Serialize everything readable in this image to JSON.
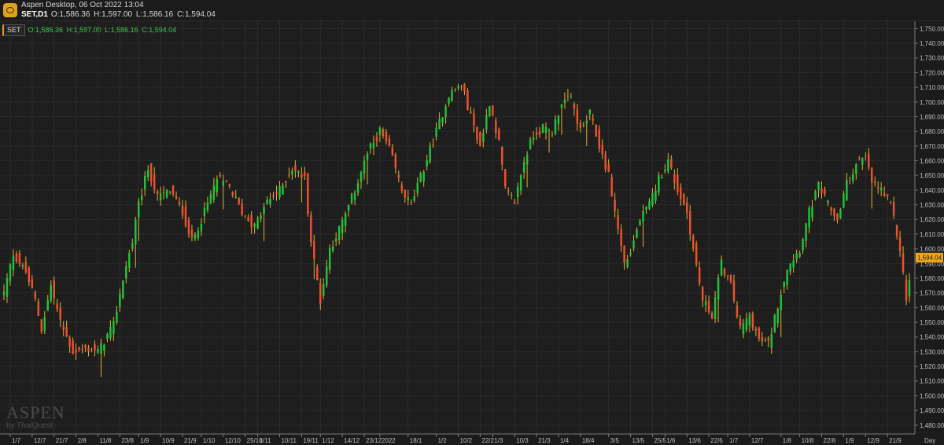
{
  "window": {
    "app_title": "Aspen Desktop, 06 Oct 2022 13:04",
    "symbol_timeframe": "SET,D1",
    "ohlc": {
      "o": "O:1,586.36",
      "h": "H:1,597.00",
      "l": "L:1,586.16",
      "c": "C:1,594.04"
    }
  },
  "legend": {
    "tag": "SET"
  },
  "watermark": {
    "brand": "ASPEN",
    "sub": "by ThaiQuest"
  },
  "timeframe_label": "Day",
  "colors": {
    "background": "#1e1e1e",
    "up": "#1fc33a",
    "down": "#f0502c",
    "wick": "#e0b030",
    "grid": "#2b2b2b",
    "axis_text": "#bdbdbd",
    "price_tag": "#f0a818"
  },
  "chart_data": {
    "type": "candlestick",
    "last_price_label": "1,594.04",
    "last_price": 1594.04,
    "ylim": [
      1474,
      1755
    ],
    "y_ticks": [
      1750,
      1740,
      1730,
      1720,
      1710,
      1700,
      1690,
      1680,
      1670,
      1660,
      1650,
      1640,
      1630,
      1620,
      1610,
      1600,
      1590,
      1580,
      1570,
      1560,
      1550,
      1540,
      1530,
      1520,
      1510,
      1500,
      1490,
      1480
    ],
    "y_tick_labels": [
      "1,750.00",
      "1,740.00",
      "1,730.00",
      "1,720.00",
      "1,710.00",
      "1,700.00",
      "1,690.00",
      "1,680.00",
      "1,670.00",
      "1,660.00",
      "1,650.00",
      "1,640.00",
      "1,630.00",
      "1,620.00",
      "1,610.00",
      "1,600.00",
      "1,590.00",
      "1,580.00",
      "1,570.00",
      "1,560.00",
      "1,550.00",
      "1,540.00",
      "1,530.00",
      "1,520.00",
      "1,510.00",
      "1,500.00",
      "1,490.00",
      "1,480.00"
    ],
    "x_ticks": [
      {
        "label": "1/7",
        "i": 2
      },
      {
        "label": "12/7",
        "i": 9
      },
      {
        "label": "21/7",
        "i": 16
      },
      {
        "label": "2/8",
        "i": 23
      },
      {
        "label": "11/8",
        "i": 30
      },
      {
        "label": "23/8",
        "i": 37
      },
      {
        "label": "1/9",
        "i": 43
      },
      {
        "label": "10/9",
        "i": 50
      },
      {
        "label": "21/9",
        "i": 57
      },
      {
        "label": "1/10",
        "i": 63
      },
      {
        "label": "12/10",
        "i": 70
      },
      {
        "label": "25/10",
        "i": 77
      },
      {
        "label": "1/11",
        "i": 81
      },
      {
        "label": "10/11",
        "i": 88
      },
      {
        "label": "19/11",
        "i": 95
      },
      {
        "label": "1/12",
        "i": 101
      },
      {
        "label": "14/12",
        "i": 108
      },
      {
        "label": "23/12",
        "i": 115
      },
      {
        "label": "2022",
        "i": 120
      },
      {
        "label": "18/1",
        "i": 129
      },
      {
        "label": "1/2",
        "i": 138
      },
      {
        "label": "10/2",
        "i": 145
      },
      {
        "label": "22/2",
        "i": 152
      },
      {
        "label": "1/3",
        "i": 156
      },
      {
        "label": "10/3",
        "i": 163
      },
      {
        "label": "21/3",
        "i": 170
      },
      {
        "label": "1/4",
        "i": 177
      },
      {
        "label": "18/4",
        "i": 184
      },
      {
        "label": "3/5",
        "i": 193
      },
      {
        "label": "13/5",
        "i": 200
      },
      {
        "label": "25/5",
        "i": 207
      },
      {
        "label": "1/6",
        "i": 211
      },
      {
        "label": "13/6",
        "i": 218
      },
      {
        "label": "22/6",
        "i": 225
      },
      {
        "label": "1/7",
        "i": 231
      },
      {
        "label": "12/7",
        "i": 238
      },
      {
        "label": "1/8",
        "i": 248
      },
      {
        "label": "10/8",
        "i": 254
      },
      {
        "label": "22/8",
        "i": 261
      },
      {
        "label": "1/9",
        "i": 268
      },
      {
        "label": "12/9",
        "i": 275
      },
      {
        "label": "21/9",
        "i": 282
      }
    ],
    "n_bars": 290,
    "anchors": [
      [
        0,
        1570
      ],
      [
        3,
        1597
      ],
      [
        7,
        1584
      ],
      [
        10,
        1565
      ],
      [
        12,
        1545
      ],
      [
        15,
        1575
      ],
      [
        18,
        1550
      ],
      [
        22,
        1530
      ],
      [
        27,
        1532
      ],
      [
        30,
        1530
      ],
      [
        35,
        1548
      ],
      [
        38,
        1580
      ],
      [
        41,
        1605
      ],
      [
        43,
        1630
      ],
      [
        46,
        1655
      ],
      [
        49,
        1635
      ],
      [
        53,
        1640
      ],
      [
        57,
        1625
      ],
      [
        60,
        1605
      ],
      [
        64,
        1625
      ],
      [
        68,
        1648
      ],
      [
        72,
        1642
      ],
      [
        76,
        1625
      ],
      [
        80,
        1615
      ],
      [
        84,
        1632
      ],
      [
        88,
        1640
      ],
      [
        92,
        1655
      ],
      [
        96,
        1648
      ],
      [
        98,
        1605
      ],
      [
        101,
        1565
      ],
      [
        104,
        1600
      ],
      [
        108,
        1618
      ],
      [
        112,
        1640
      ],
      [
        116,
        1665
      ],
      [
        120,
        1680
      ],
      [
        123,
        1668
      ],
      [
        127,
        1640
      ],
      [
        130,
        1630
      ],
      [
        134,
        1655
      ],
      [
        138,
        1680
      ],
      [
        142,
        1705
      ],
      [
        146,
        1712
      ],
      [
        149,
        1690
      ],
      [
        152,
        1670
      ],
      [
        155,
        1700
      ],
      [
        158,
        1672
      ],
      [
        160,
        1640
      ],
      [
        163,
        1632
      ],
      [
        166,
        1660
      ],
      [
        169,
        1678
      ],
      [
        172,
        1682
      ],
      [
        175,
        1680
      ],
      [
        178,
        1700
      ],
      [
        181,
        1702
      ],
      [
        184,
        1680
      ],
      [
        187,
        1692
      ],
      [
        190,
        1670
      ],
      [
        193,
        1650
      ],
      [
        195,
        1625
      ],
      [
        198,
        1590
      ],
      [
        200,
        1598
      ],
      [
        203,
        1620
      ],
      [
        206,
        1630
      ],
      [
        209,
        1648
      ],
      [
        212,
        1660
      ],
      [
        215,
        1640
      ],
      [
        218,
        1625
      ],
      [
        220,
        1600
      ],
      [
        223,
        1565
      ],
      [
        226,
        1555
      ],
      [
        229,
        1590
      ],
      [
        232,
        1575
      ],
      [
        235,
        1545
      ],
      [
        238,
        1555
      ],
      [
        241,
        1538
      ],
      [
        244,
        1535
      ],
      [
        247,
        1562
      ],
      [
        250,
        1588
      ],
      [
        254,
        1600
      ],
      [
        257,
        1625
      ],
      [
        260,
        1643
      ],
      [
        263,
        1630
      ],
      [
        266,
        1620
      ],
      [
        269,
        1645
      ],
      [
        272,
        1658
      ],
      [
        275,
        1662
      ],
      [
        277,
        1645
      ],
      [
        280,
        1640
      ],
      [
        283,
        1630
      ],
      [
        286,
        1600
      ],
      [
        288,
        1565
      ],
      [
        290,
        1594
      ]
    ]
  }
}
